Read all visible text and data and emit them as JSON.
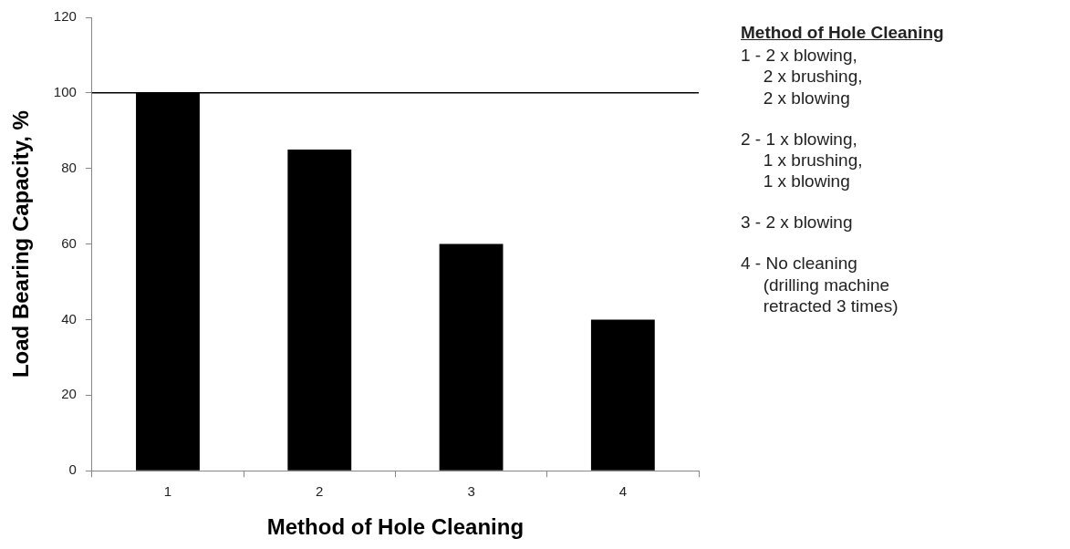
{
  "chart_data": {
    "type": "bar",
    "xlabel": "Method of Hole Cleaning",
    "ylabel": "Load Bearing Capacity, %",
    "categories": [
      "1",
      "2",
      "3",
      "4"
    ],
    "values": [
      100,
      85,
      60,
      40
    ],
    "color": "#000000",
    "ylim": [
      0,
      120
    ],
    "yticks": [
      0,
      20,
      40,
      60,
      80,
      100,
      120
    ],
    "grid": false,
    "legend": false,
    "ref_lines": [
      {
        "axis": "y",
        "value": 100,
        "color": "#000000"
      }
    ],
    "annotations": [
      "Method of Hole Cleaning",
      "1 - 2 x blowing,\n2 x brushing,\n2 x blowing",
      "2 - 1 x blowing,\n1 x brushing,\n1 x blowing",
      "3 - 2 x blowing",
      "4 - No cleaning\n(drilling machine\nretracted 3 times)"
    ]
  }
}
